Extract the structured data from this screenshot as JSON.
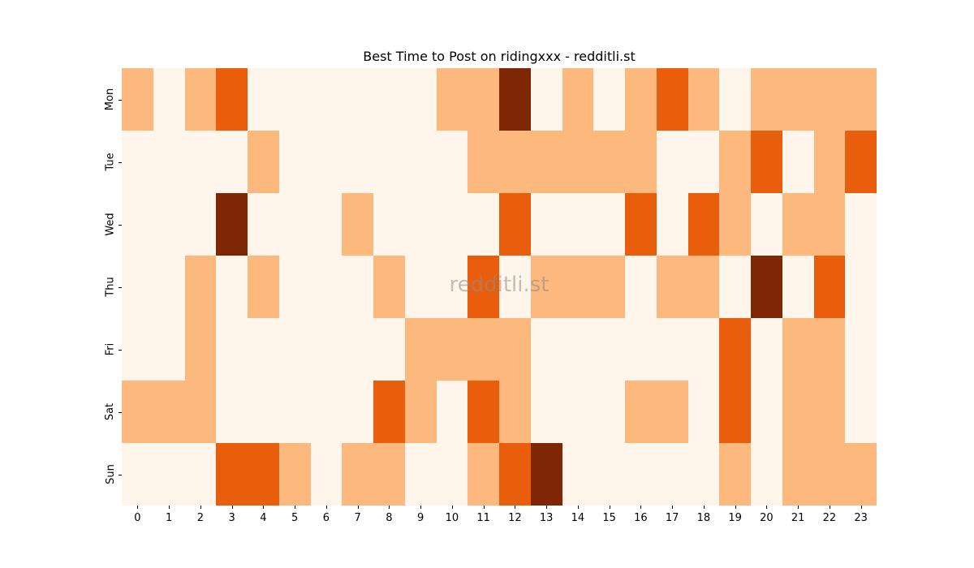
{
  "chart_data": {
    "type": "heatmap",
    "title": "Best Time to Post on ridingxxx - redditli.st",
    "xlabel": "",
    "ylabel": "",
    "x_categories": [
      "0",
      "1",
      "2",
      "3",
      "4",
      "5",
      "6",
      "7",
      "8",
      "9",
      "10",
      "11",
      "12",
      "13",
      "14",
      "15",
      "16",
      "17",
      "18",
      "19",
      "20",
      "21",
      "22",
      "23"
    ],
    "y_categories": [
      "Mon",
      "Tue",
      "Wed",
      "Thu",
      "Fri",
      "Sat",
      "Sun"
    ],
    "colorscale": [
      "#fff5eb",
      "#fdb97d",
      "#e95e0d",
      "#7f2704"
    ],
    "value_levels_note": "0 = lowest activity, 3 = highest activity (relative)",
    "values": [
      [
        1,
        0,
        1,
        2,
        0,
        0,
        0,
        0,
        0,
        0,
        1,
        1,
        3,
        0,
        1,
        0,
        1,
        2,
        1,
        0,
        1,
        1,
        1,
        1
      ],
      [
        0,
        0,
        0,
        0,
        1,
        0,
        0,
        0,
        0,
        0,
        0,
        1,
        1,
        1,
        1,
        1,
        1,
        0,
        0,
        1,
        2,
        0,
        1,
        2
      ],
      [
        0,
        0,
        0,
        3,
        0,
        0,
        0,
        1,
        0,
        0,
        0,
        0,
        2,
        0,
        0,
        0,
        2,
        0,
        2,
        1,
        0,
        1,
        1,
        0
      ],
      [
        0,
        0,
        1,
        0,
        1,
        0,
        0,
        0,
        1,
        0,
        0,
        2,
        0,
        1,
        1,
        1,
        0,
        1,
        1,
        0,
        3,
        0,
        2,
        0
      ],
      [
        0,
        0,
        1,
        0,
        0,
        0,
        0,
        0,
        0,
        1,
        1,
        1,
        1,
        0,
        0,
        0,
        0,
        0,
        0,
        2,
        0,
        1,
        1,
        0
      ],
      [
        1,
        1,
        1,
        0,
        0,
        0,
        0,
        0,
        2,
        1,
        0,
        2,
        1,
        0,
        0,
        0,
        1,
        1,
        0,
        2,
        0,
        1,
        1,
        0
      ],
      [
        0,
        0,
        0,
        2,
        2,
        1,
        0,
        1,
        1,
        0,
        0,
        1,
        2,
        3,
        0,
        0,
        0,
        0,
        0,
        1,
        0,
        1,
        1,
        1
      ]
    ],
    "colorbar": false,
    "grid": false
  },
  "watermark": "redditli.st"
}
